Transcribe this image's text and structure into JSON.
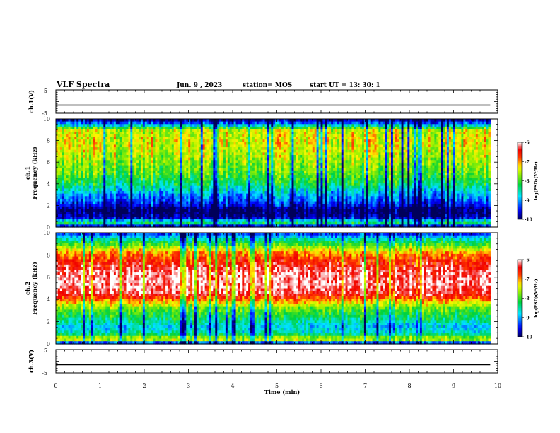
{
  "header": {
    "title": "VLF Spectra",
    "date": "Jun. 9 , 2023",
    "station": "station= MOS",
    "start": "start UT = 13: 30: 1"
  },
  "chart_data": [
    {
      "type": "line",
      "panel": "ch1-waveform",
      "ylabel": "ch.1(V)",
      "ylim": [
        -5,
        5
      ],
      "yticks": [
        "5",
        "-5"
      ],
      "xlim": [
        0,
        10
      ],
      "series": [
        {
          "x": [
            0,
            9.83
          ],
          "y": [
            -1.5,
            -1.5
          ]
        }
      ]
    },
    {
      "type": "heatmap",
      "panel": "ch1-spectrogram",
      "ylabel": "ch.1\nFrequency (kHz)",
      "ylim": [
        0,
        10
      ],
      "yticks": [
        "0",
        "2",
        "4",
        "6",
        "8",
        "10"
      ],
      "xlim": [
        0,
        10
      ],
      "data_end_min": 9.83,
      "band_profile": [
        [
          0,
          -10
        ],
        [
          0.4,
          -8.2
        ],
        [
          0.8,
          -9.6
        ],
        [
          1.2,
          -10
        ],
        [
          1.7,
          -10
        ],
        [
          2.0,
          -9.6
        ],
        [
          2.6,
          -9.2
        ],
        [
          3.3,
          -8.8
        ],
        [
          4.0,
          -8.3
        ],
        [
          5.0,
          -7.9
        ],
        [
          6.0,
          -7.7
        ],
        [
          7.0,
          -7.5
        ],
        [
          8.0,
          -7.4
        ],
        [
          9.0,
          -7.5
        ],
        [
          9.5,
          -9.0
        ],
        [
          10,
          -10
        ]
      ],
      "colorbar": {
        "label": "log(PSD)(V²/Hz)",
        "range": [
          -10,
          -6
        ],
        "ticks": [
          "-6",
          "-7",
          "-8",
          "-9",
          "-10"
        ]
      }
    },
    {
      "type": "heatmap",
      "panel": "ch2-spectrogram",
      "ylabel": "ch.2\nFrequency (kHz)",
      "ylim": [
        0,
        10
      ],
      "yticks": [
        "0",
        "2",
        "4",
        "6",
        "8",
        "10"
      ],
      "xlim": [
        0,
        10
      ],
      "data_end_min": 9.83,
      "band_profile": [
        [
          0,
          -10
        ],
        [
          0.4,
          -7.3
        ],
        [
          0.9,
          -8.5
        ],
        [
          1.5,
          -8.8
        ],
        [
          2.5,
          -8.2
        ],
        [
          3.2,
          -7.8
        ],
        [
          3.8,
          -7.1
        ],
        [
          4.5,
          -6.3
        ],
        [
          5.5,
          -6.1
        ],
        [
          6.5,
          -6.2
        ],
        [
          7.5,
          -6.6
        ],
        [
          8.2,
          -7.0
        ],
        [
          8.8,
          -7.8
        ],
        [
          9.4,
          -8.5
        ],
        [
          10,
          -9.5
        ]
      ],
      "colorbar": {
        "label": "log(PSD)(V²/Hz)",
        "range": [
          -10,
          -6
        ],
        "ticks": [
          "-6",
          "-7",
          "-8",
          "-9",
          "-10"
        ]
      }
    },
    {
      "type": "line",
      "panel": "ch3-waveform",
      "ylabel": "ch.3(V)",
      "ylim": [
        -5,
        5
      ],
      "yticks": [
        "5",
        "-5"
      ],
      "xlim": [
        0,
        10
      ],
      "series": [
        {
          "x": [
            0,
            9.83
          ],
          "y": [
            -1.5,
            -1.5
          ]
        }
      ]
    }
  ],
  "xaxis": {
    "label": "Time (min)",
    "ticks": [
      "0",
      "1",
      "2",
      "3",
      "4",
      "5",
      "6",
      "7",
      "8",
      "9",
      "10"
    ]
  },
  "colors": {
    "blue_dark": "#00007f",
    "blue": "#0000ff",
    "cyan": "#00ffff",
    "green": "#00cc00",
    "yellow": "#ffff00",
    "red": "#ff0000",
    "white": "#ffffff"
  }
}
